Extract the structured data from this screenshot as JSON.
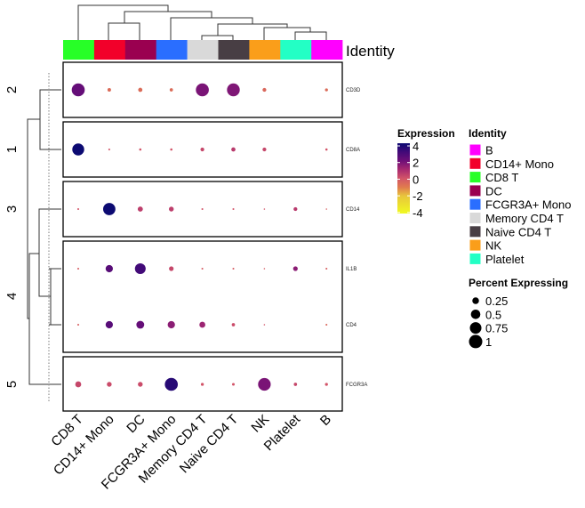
{
  "chart_data": {
    "type": "heatmap",
    "columns": [
      "CD8 T",
      "CD14+ Mono",
      "DC",
      "FCGR3A+ Mono",
      "Memory CD4 T",
      "Naive CD4 T",
      "NK",
      "Platelet",
      "B"
    ],
    "column_annotation_title": "Identity",
    "row_groups": [
      {
        "label": "2",
        "genes": [
          "CD3D"
        ]
      },
      {
        "label": "1",
        "genes": [
          "CD8A"
        ]
      },
      {
        "label": "3",
        "genes": [
          "CD14"
        ]
      },
      {
        "label": "4",
        "genes": [
          "IL1B",
          "CD4"
        ]
      },
      {
        "label": "5",
        "genes": [
          "FCGR3A"
        ]
      }
    ],
    "rows": [
      {
        "gene": "CD3D",
        "percent": [
          0.95,
          0.07,
          0.1,
          0.06,
          0.95,
          0.92,
          0.08,
          0,
          0.05
        ],
        "expression": [
          2.2,
          -0.6,
          -0.6,
          -0.6,
          1.8,
          1.7,
          -0.5,
          null,
          -0.6
        ]
      },
      {
        "gene": "CD8A",
        "percent": [
          0.8,
          0.02,
          0.03,
          0.03,
          0.08,
          0.1,
          0.08,
          0,
          0.03
        ],
        "expression": [
          4,
          0,
          0,
          0,
          0.3,
          0.6,
          0.3,
          null,
          0
        ]
      },
      {
        "gene": "CD14",
        "percent": [
          0.02,
          0.85,
          0.15,
          0.13,
          0.02,
          0.02,
          0.01,
          0.08,
          0.01
        ],
        "expression": [
          0,
          4,
          0.5,
          0.5,
          0,
          0,
          0,
          0.6,
          -0.3
        ]
      },
      {
        "gene": "IL1B",
        "percent": [
          0.02,
          0.3,
          0.65,
          0.12,
          0.02,
          0.02,
          0.01,
          0.12,
          0.02
        ],
        "expression": [
          -0.2,
          2.5,
          3,
          0.3,
          -0.2,
          -0.2,
          -0.2,
          1.5,
          -0.3
        ]
      },
      {
        "gene": "CD4",
        "percent": [
          0.02,
          0.3,
          0.35,
          0.3,
          0.2,
          0.06,
          0.01,
          0,
          0.02
        ],
        "expression": [
          -0.3,
          2.5,
          2.2,
          1.5,
          1.2,
          0.2,
          0,
          null,
          -0.5
        ]
      },
      {
        "gene": "FCGR3A",
        "percent": [
          0.2,
          0.13,
          0.13,
          0.95,
          0.05,
          0.04,
          0.9,
          0.06,
          0.05
        ],
        "expression": [
          0.3,
          0.2,
          0.2,
          3.5,
          0,
          0,
          1.8,
          0.3,
          0
        ]
      }
    ],
    "expression_legend": {
      "title": "Expression",
      "ticks": [
        "4",
        "2",
        "0",
        "-2",
        "-4"
      ],
      "range": [
        -4,
        4
      ],
      "colors": [
        {
          "v": -4,
          "c": "#f0fa20"
        },
        {
          "v": -2,
          "c": "#e8c63c"
        },
        {
          "v": -1,
          "c": "#e07a4e"
        },
        {
          "v": 0,
          "c": "#d25468"
        },
        {
          "v": 1,
          "c": "#a82a70"
        },
        {
          "v": 2,
          "c": "#6e0f78"
        },
        {
          "v": 3,
          "c": "#420a78"
        },
        {
          "v": 4,
          "c": "#0c0a72"
        }
      ]
    },
    "identity_legend": {
      "title": "Identity",
      "items": [
        {
          "label": "B",
          "color": "#ff00ff"
        },
        {
          "label": "CD14+ Mono",
          "color": "#f2002a"
        },
        {
          "label": "CD8 T",
          "color": "#27ff27"
        },
        {
          "label": "DC",
          "color": "#9a0050"
        },
        {
          "label": "FCGR3A+ Mono",
          "color": "#2a6eff"
        },
        {
          "label": "Memory CD4 T",
          "color": "#d9d9d9"
        },
        {
          "label": "Naive CD4 T",
          "color": "#483e44"
        },
        {
          "label": "NK",
          "color": "#fa9e1a"
        },
        {
          "label": "Platelet",
          "color": "#23ffc5"
        }
      ]
    },
    "size_legend": {
      "title": "Percent Expressing",
      "values": [
        0.25,
        0.5,
        0.75,
        1
      ],
      "labels": [
        "0.25",
        "0.5",
        "0.75",
        "1"
      ]
    }
  }
}
